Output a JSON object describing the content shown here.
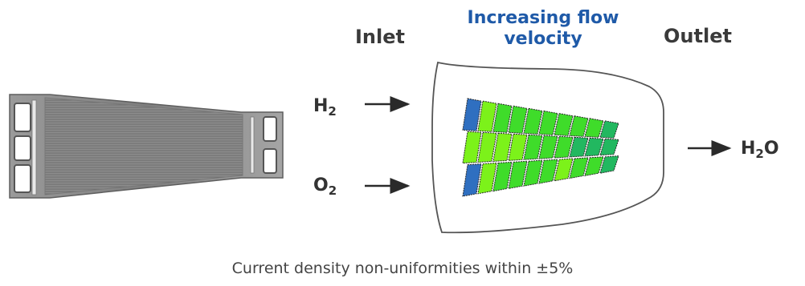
{
  "labels": {
    "inlet": "Inlet",
    "outlet": "Outlet",
    "velocity_line1": "Increasing flow",
    "velocity_line2": "velocity",
    "caption": "Current density non-uniformities within ±5%"
  },
  "species": {
    "h2": {
      "base": "H",
      "sub": "2"
    },
    "o2": {
      "base": "O",
      "sub": "2"
    },
    "h2o": {
      "base": "H",
      "sub": "2",
      "tail": "O"
    }
  },
  "colors": {
    "accent_blue": "#1f5aa8",
    "text_gray": "#3a3a3a",
    "plate_gray": "#8a8a8a",
    "cell_blue": "#2f6fc0",
    "cell_green_light": "#7cf21a",
    "cell_green_mid": "#3fdc2a",
    "cell_green_dark": "#22b860"
  },
  "heatmap": {
    "rows": 3,
    "cols": 10,
    "levels": [
      [
        "blue",
        "light",
        "mid",
        "mid",
        "mid",
        "mid",
        "mid",
        "mid",
        "mid",
        "dark"
      ],
      [
        "light",
        "light",
        "light",
        "light",
        "mid",
        "mid",
        "mid",
        "dark",
        "dark",
        "dark"
      ],
      [
        "blue",
        "light",
        "mid",
        "mid",
        "mid",
        "mid",
        "light",
        "mid",
        "mid",
        "dark"
      ]
    ]
  },
  "icons": {
    "plate": "bipolar-plate-image",
    "arrow": "right-arrow-icon"
  }
}
